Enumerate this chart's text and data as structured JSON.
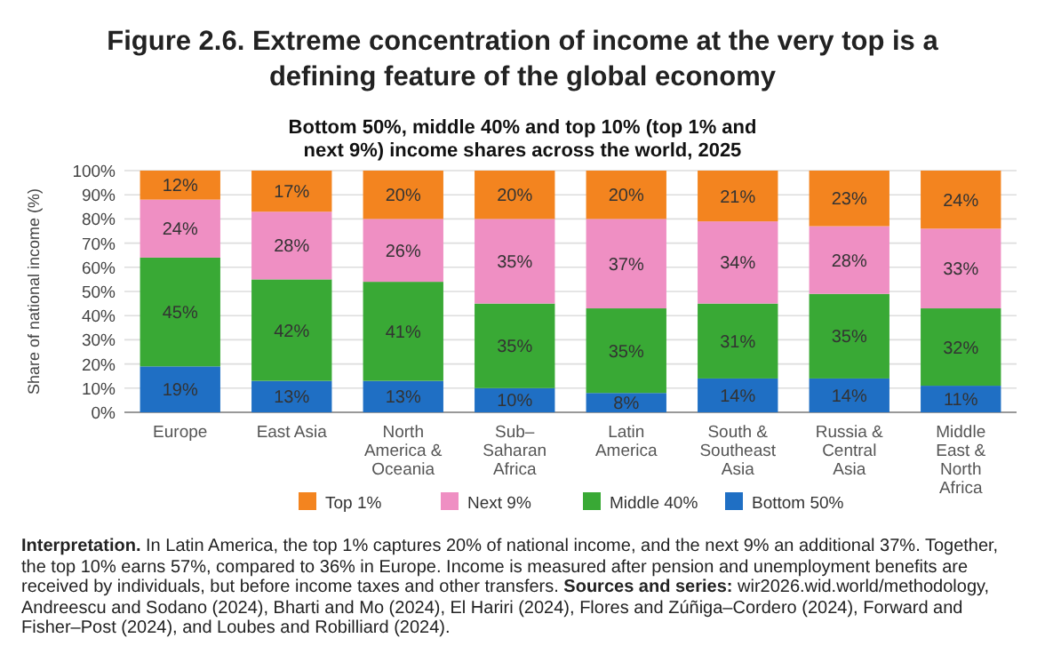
{
  "chart_data": {
    "type": "bar",
    "stacked": true,
    "title": "Figure 2.6. Extreme concentration of income at the very top is a defining feature of the global economy",
    "subtitle": "Bottom 50%, middle 40% and top 10% (top 1% and next 9%) income shares across the world, 2025",
    "ylabel": "Share of national income (%)",
    "categories": [
      "Europe",
      "East Asia",
      "North America & Oceania",
      "Sub–Saharan Africa",
      "Latin America",
      "South & Southeast Asia",
      "Russia & Central Asia",
      "Middle East & North Africa"
    ],
    "series": [
      {
        "name": "Bottom 50%",
        "color": "#1f6fc4",
        "values": [
          19,
          13,
          13,
          10,
          8,
          14,
          14,
          11
        ],
        "value_labels": [
          "19%",
          "13%",
          "13%",
          "10%",
          "8%",
          "14%",
          "14%",
          "11%"
        ]
      },
      {
        "name": "Middle 40%",
        "color": "#39a935",
        "values": [
          45,
          42,
          41,
          35,
          35,
          31,
          35,
          32
        ],
        "value_labels": [
          "45%",
          "42%",
          "41%",
          "35%",
          "35%",
          "31%",
          "35%",
          "32%"
        ]
      },
      {
        "name": "Next 9%",
        "color": "#ef8fc3",
        "values": [
          24,
          28,
          26,
          35,
          37,
          34,
          28,
          33
        ],
        "value_labels": [
          "24%",
          "28%",
          "26%",
          "35%",
          "37%",
          "34%",
          "28%",
          "33%"
        ]
      },
      {
        "name": "Top 1%",
        "color": "#f3841f",
        "values": [
          12,
          17,
          20,
          20,
          20,
          21,
          23,
          24
        ],
        "value_labels": [
          "12%",
          "17%",
          "20%",
          "20%",
          "20%",
          "21%",
          "23%",
          "24%"
        ]
      }
    ],
    "ylim": [
      0,
      100
    ],
    "yticks": [
      {
        "value": 0,
        "label": "0%"
      },
      {
        "value": 10,
        "label": "10%"
      },
      {
        "value": 20,
        "label": "20%"
      },
      {
        "value": 30,
        "label": "30%"
      },
      {
        "value": 40,
        "label": "40%"
      },
      {
        "value": 50,
        "label": "50%"
      },
      {
        "value": 60,
        "label": "60%"
      },
      {
        "value": 70,
        "label": "70%"
      },
      {
        "value": 80,
        "label": "80%"
      },
      {
        "value": 90,
        "label": "90%"
      },
      {
        "value": 100,
        "label": "100%"
      }
    ],
    "grid": "y",
    "legend": "bottom",
    "annotations": [
      "Interpretation. In Latin America, the top 1% captures 20% of national income, and the next 9% an additional 37%. Together, the top 10% earns 57%, compared to 36% in Europe. Income is measured after pension and unemployment benefits are received by individuals, but before income taxes and other transfers.",
      "Sources and series: wir2026.wid.world/methodology, Andreescu and Sodano (2024), Bharti and Mo (2024), El Hariri (2024), Flores and Zúñiga–Cordero (2024), Forward and Fisher–Post (2024), and Loubes and Robilliard (2024)."
    ]
  }
}
